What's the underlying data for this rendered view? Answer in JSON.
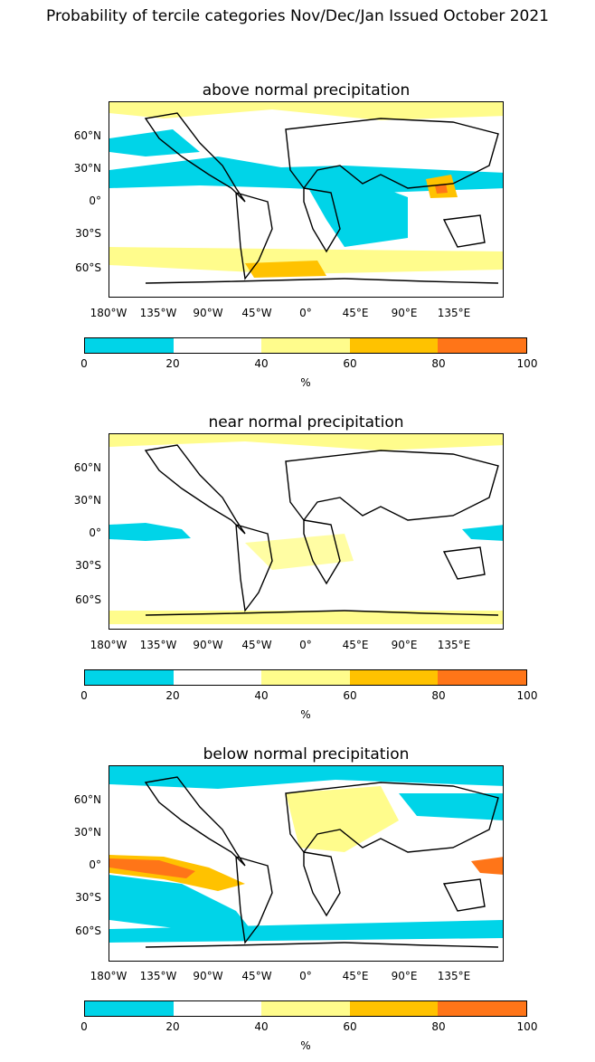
{
  "title": "Probability of tercile categories Nov/Dec/Jan Issued October 2021",
  "panels": [
    {
      "title": "above normal precipitation"
    },
    {
      "title": "near normal precipitation"
    },
    {
      "title": "below normal precipitation"
    }
  ],
  "lat_labels": [
    "60°N",
    "30°N",
    "0°",
    "30°S",
    "60°S"
  ],
  "lon_labels": [
    "180°W",
    "135°W",
    "90°W",
    "45°W",
    "0°",
    "45°E",
    "90°E",
    "135°E"
  ],
  "colorbar": {
    "ticks": [
      "0",
      "20",
      "40",
      "60",
      "80",
      "100"
    ],
    "unit": "%",
    "bins": [
      {
        "range": "0-20",
        "color": "#00d4e8"
      },
      {
        "range": "20-40",
        "color": "#ffffff"
      },
      {
        "range": "40-60",
        "color": "#fffc8c"
      },
      {
        "range": "60-80",
        "color": "#ffc200"
      },
      {
        "range": "80-100",
        "color": "#ff7518"
      }
    ]
  }
}
